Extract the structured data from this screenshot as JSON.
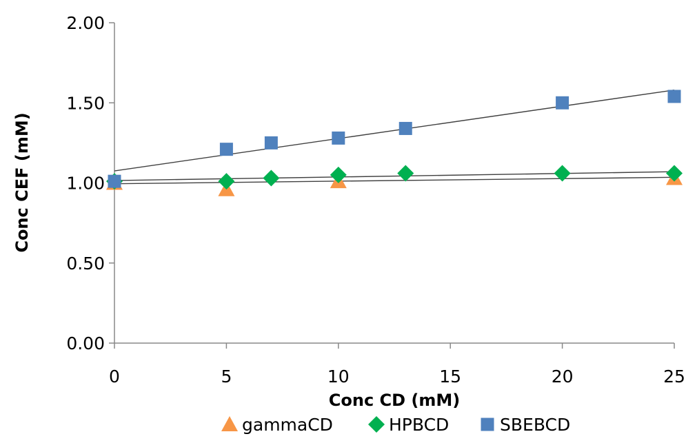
{
  "chart_data": {
    "type": "scatter",
    "title": "",
    "xlabel": "Conc CD (mM)",
    "ylabel": "Conc CEF (mM)",
    "xlim": [
      0,
      25
    ],
    "ylim": [
      0,
      2
    ],
    "xticks": [
      0,
      5,
      10,
      15,
      20,
      25
    ],
    "yticks": [
      0,
      0.5,
      1,
      1.5,
      2
    ],
    "x_tick_labels": [
      "0",
      "5",
      "10",
      "15",
      "20",
      "25"
    ],
    "y_tick_labels": [
      "0.00",
      "0.50",
      "1.00",
      "1.50",
      "2.00"
    ],
    "grid": false,
    "legend_position": "bottom",
    "series": [
      {
        "name": "gammaCD",
        "marker": "triangle",
        "color": "#F79646",
        "points": [
          [
            0,
            1.0
          ],
          [
            5,
            0.96
          ],
          [
            10,
            1.01
          ],
          [
            25,
            1.03
          ]
        ],
        "trendline": [
          [
            0,
            0.995
          ],
          [
            25,
            1.035
          ]
        ]
      },
      {
        "name": "HPBCD",
        "marker": "diamond",
        "color": "#00B050",
        "points": [
          [
            0,
            1.01
          ],
          [
            5,
            1.01
          ],
          [
            7,
            1.03
          ],
          [
            10,
            1.05
          ],
          [
            13,
            1.06
          ],
          [
            20,
            1.06
          ],
          [
            25,
            1.06
          ]
        ],
        "trendline": [
          [
            0,
            1.015
          ],
          [
            25,
            1.07
          ]
        ]
      },
      {
        "name": "SBEBCD",
        "marker": "square",
        "color": "#4F81BD",
        "points": [
          [
            0,
            1.01
          ],
          [
            5,
            1.21
          ],
          [
            7,
            1.25
          ],
          [
            10,
            1.28
          ],
          [
            13,
            1.34
          ],
          [
            20,
            1.5
          ],
          [
            25,
            1.54
          ]
        ],
        "trendline": [
          [
            0,
            1.075
          ],
          [
            25,
            1.58
          ]
        ]
      }
    ]
  }
}
